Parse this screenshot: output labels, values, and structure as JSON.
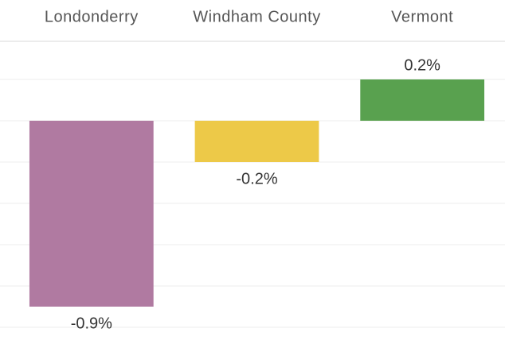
{
  "chart_data": {
    "type": "bar",
    "categories": [
      "Londonderry",
      "Windham County",
      "Vermont"
    ],
    "values": [
      -0.9,
      -0.2,
      0.2
    ],
    "value_labels": [
      "-0.9%",
      "-0.2%",
      "0.2%"
    ],
    "colors": [
      "#b07aa1",
      "#edc948",
      "#59a14f"
    ],
    "ylim": [
      -1.05,
      0.4
    ],
    "yticks": [
      -1.0,
      -0.8,
      -0.6,
      -0.4,
      -0.2,
      0,
      0.2
    ],
    "grid": true
  }
}
